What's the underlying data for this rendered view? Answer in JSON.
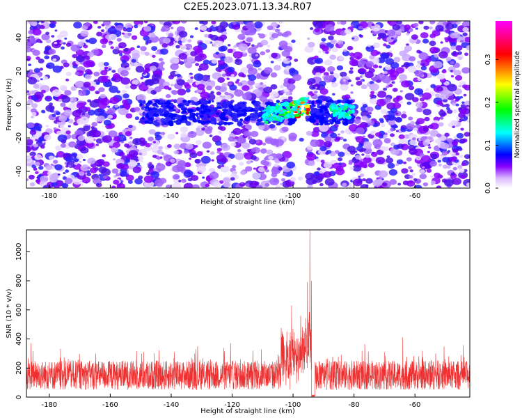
{
  "title": "C2E5.2023.071.13.34.R07",
  "chart_data": [
    {
      "type": "heatmap",
      "xlabel": "Height of straight line (km)",
      "ylabel": "Frequency (Hz)",
      "xlim": [
        -187.5,
        -42
      ],
      "ylim": [
        -50,
        50
      ],
      "xticks": [
        -180,
        -160,
        -140,
        -120,
        -100,
        -80,
        -60
      ],
      "yticks": [
        -40,
        -20,
        0,
        20,
        40
      ],
      "colorbar": {
        "label": "Normalized spectral amplitude",
        "range": [
          0,
          0.39
        ],
        "ticks": [
          0.0,
          0.1,
          0.2,
          0.3
        ]
      },
      "features": {
        "blank_band_km": [
          -100,
          -95
        ],
        "signal_band_hz": [
          -12,
          2
        ],
        "strong_echo_km": [
          -110,
          -95
        ],
        "weak_echo_km": [
          -88,
          -80
        ]
      },
      "grid": false
    },
    {
      "type": "line",
      "xlabel": "Height of straight line (km)",
      "ylabel": "SNR (10 * v/v)",
      "xlim": [
        -187.5,
        -42
      ],
      "ylim": [
        0,
        1150
      ],
      "xticks": [
        -180,
        -160,
        -140,
        -120,
        -100,
        -80,
        -60
      ],
      "yticks": [
        0,
        200,
        400,
        600,
        800,
        1000
      ],
      "series_color": "#ee3030",
      "baseline_range": [
        50,
        250
      ],
      "peaks": [
        {
          "x": -94.5,
          "y": 1150
        },
        {
          "x": -95.3,
          "y": 790
        },
        {
          "x": -94.0,
          "y": 800
        },
        {
          "x": -100.5,
          "y": 630
        },
        {
          "x": -97.5,
          "y": 560
        },
        {
          "x": -64.0,
          "y": 410
        },
        {
          "x": -120.5,
          "y": 370
        },
        {
          "x": -186.0,
          "y": 370
        }
      ],
      "gap_km": [
        -94.0,
        -92.8
      ],
      "grid": false
    }
  ],
  "colors": {
    "spectrum": [
      "#ffffff",
      "#8800ff",
      "#0000ff",
      "#00ffff",
      "#00ff00",
      "#ffff00",
      "#ff0000",
      "#ff00ff"
    ]
  }
}
